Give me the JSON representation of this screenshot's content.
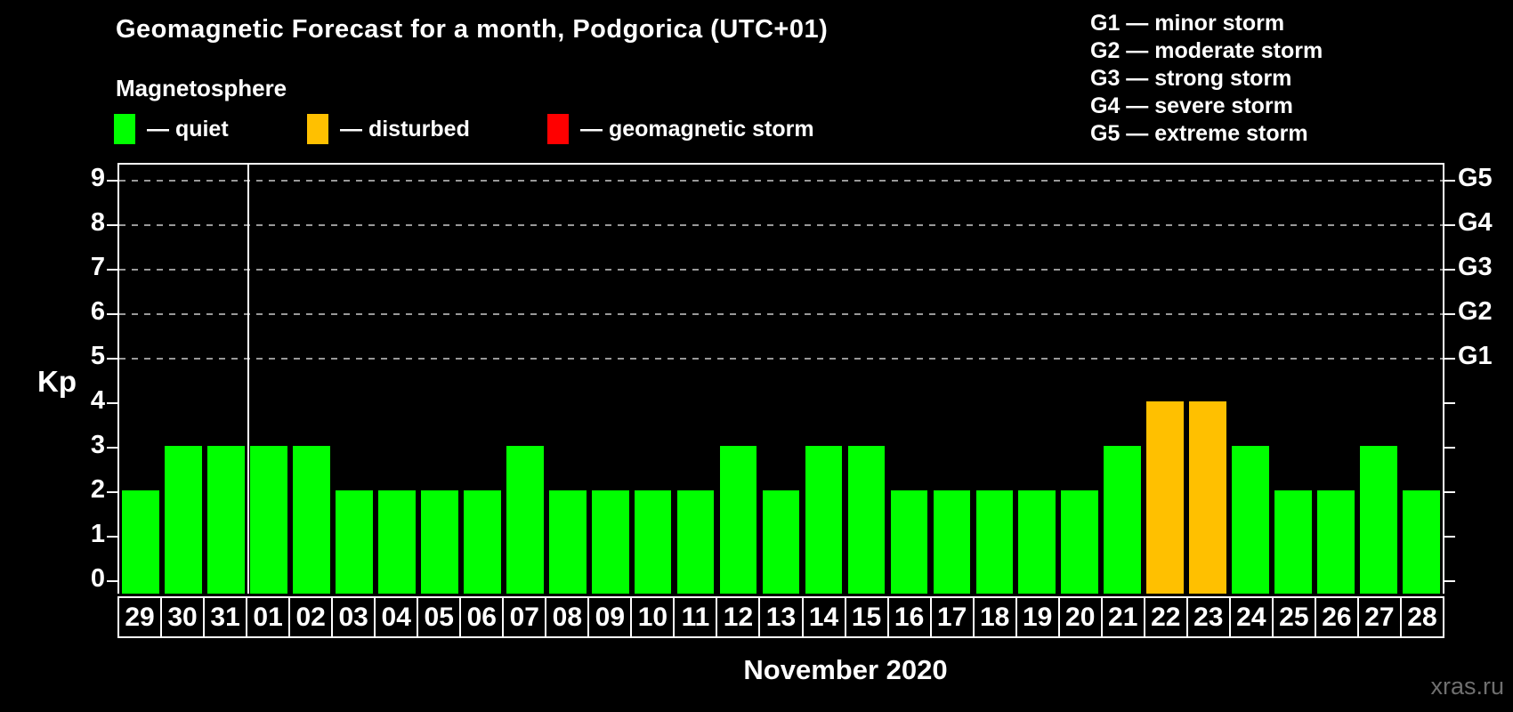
{
  "header": {
    "title": "Geomagnetic Forecast for a month, Podgorica (UTC+01)",
    "subtitle": "Magnetosphere"
  },
  "legend": {
    "separator": "—",
    "items": [
      {
        "key": "quiet",
        "label": "quiet",
        "color": "#00ff00",
        "x": 128
      },
      {
        "key": "disturbed",
        "label": "disturbed",
        "color": "#ffc000",
        "x": 345
      },
      {
        "key": "storm",
        "label": "geomagnetic storm",
        "color": "#ff0000",
        "x": 615
      }
    ]
  },
  "g_scale_legend": [
    {
      "code": "G1",
      "desc": "minor storm"
    },
    {
      "code": "G2",
      "desc": "moderate storm"
    },
    {
      "code": "G3",
      "desc": "strong storm"
    },
    {
      "code": "G4",
      "desc": "severe storm"
    },
    {
      "code": "G5",
      "desc": "extreme storm"
    }
  ],
  "chart_data": {
    "type": "bar",
    "title": "Geomagnetic Forecast for a month, Podgorica (UTC+01)",
    "ylabel": "Kp",
    "xlabel": "November 2020",
    "ylim": [
      0,
      9
    ],
    "yticks": [
      0,
      1,
      2,
      3,
      4,
      5,
      6,
      7,
      8,
      9
    ],
    "grid_levels": [
      5,
      6,
      7,
      8,
      9
    ],
    "right_axis": [
      {
        "level": 5,
        "label": "G1"
      },
      {
        "level": 6,
        "label": "G2"
      },
      {
        "level": 7,
        "label": "G3"
      },
      {
        "level": 8,
        "label": "G4"
      },
      {
        "level": 9,
        "label": "G5"
      }
    ],
    "categories": [
      "29",
      "30",
      "31",
      "01",
      "02",
      "03",
      "04",
      "05",
      "06",
      "07",
      "08",
      "09",
      "10",
      "11",
      "12",
      "13",
      "14",
      "15",
      "16",
      "17",
      "18",
      "19",
      "20",
      "21",
      "22",
      "23",
      "24",
      "25",
      "26",
      "27",
      "28"
    ],
    "values": [
      2,
      3,
      3,
      3,
      3,
      2,
      2,
      2,
      2,
      3,
      2,
      2,
      2,
      2,
      3,
      2,
      3,
      3,
      2,
      2,
      2,
      2,
      2,
      3,
      4,
      4,
      3,
      2,
      2,
      3,
      2
    ],
    "statuses": [
      "quiet",
      "quiet",
      "quiet",
      "quiet",
      "quiet",
      "quiet",
      "quiet",
      "quiet",
      "quiet",
      "quiet",
      "quiet",
      "quiet",
      "quiet",
      "quiet",
      "quiet",
      "quiet",
      "quiet",
      "quiet",
      "quiet",
      "quiet",
      "quiet",
      "quiet",
      "quiet",
      "quiet",
      "disturbed",
      "disturbed",
      "quiet",
      "quiet",
      "quiet",
      "quiet",
      "quiet"
    ],
    "month_separator_after_index": 2,
    "legend_position": "top-left",
    "grid_color": "#999999"
  },
  "colors": {
    "background": "#000000",
    "axis": "#ffffff",
    "gridline": "#999999",
    "watermark_text": "#6f6f6f"
  },
  "watermark": "xras.ru"
}
